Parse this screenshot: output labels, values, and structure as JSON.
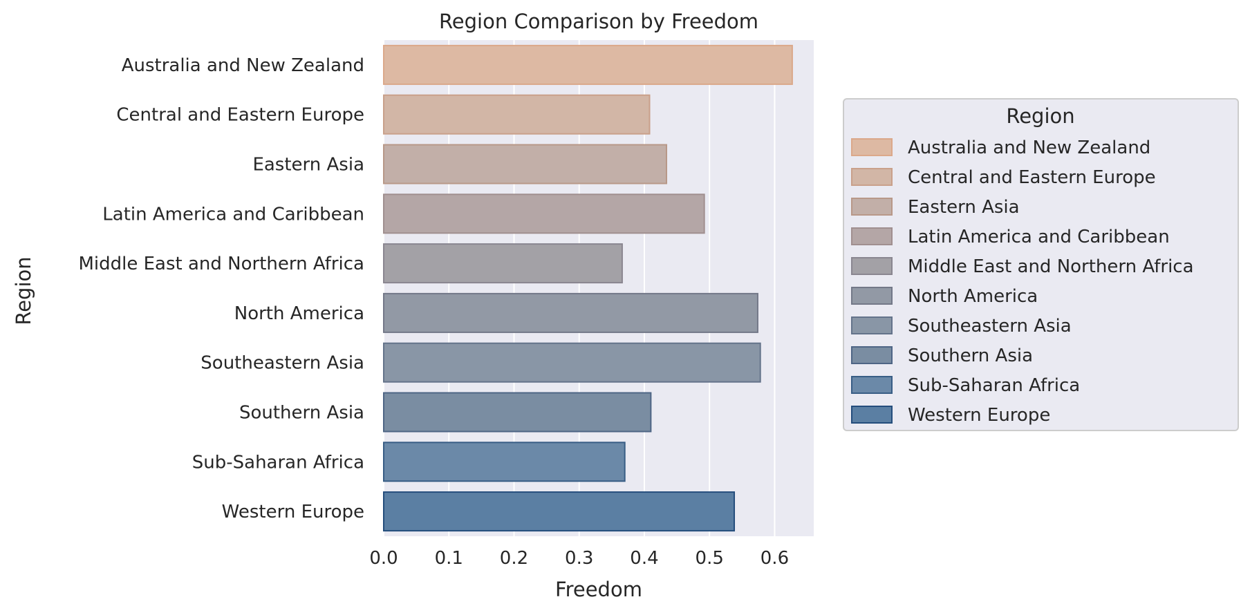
{
  "chart_data": {
    "type": "bar",
    "orientation": "horizontal",
    "title": "Region Comparison by Freedom",
    "xlabel": "Freedom",
    "ylabel": "Region",
    "xlim": [
      0,
      0.66
    ],
    "xticks": [
      "0.0",
      "0.1",
      "0.2",
      "0.3",
      "0.4",
      "0.5",
      "0.6"
    ],
    "grid": true,
    "legend_title": "Region",
    "legend_position": "right",
    "categories": [
      "Australia and New Zealand",
      "Central and Eastern Europe",
      "Eastern Asia",
      "Latin America and Caribbean",
      "Middle East and Northern Africa",
      "North America",
      "Southeastern Asia",
      "Southern Asia",
      "Sub-Saharan Africa",
      "Western Europe"
    ],
    "values": [
      0.627,
      0.408,
      0.434,
      0.492,
      0.366,
      0.574,
      0.578,
      0.41,
      0.37,
      0.538
    ],
    "colors": [
      "#ddb9a3",
      "#d2b6a6",
      "#c2afa8",
      "#b4a6a6",
      "#a3a1a6",
      "#9299a5",
      "#8996a6",
      "#7a8da2",
      "#6b89a8",
      "#5b7fa3"
    ],
    "edge_colors": [
      "#dba88a",
      "#c9a08a",
      "#b89888",
      "#a08f8f",
      "#8a8690",
      "#737888",
      "#64738a",
      "#4e6585",
      "#385d85",
      "#244d7c"
    ]
  }
}
